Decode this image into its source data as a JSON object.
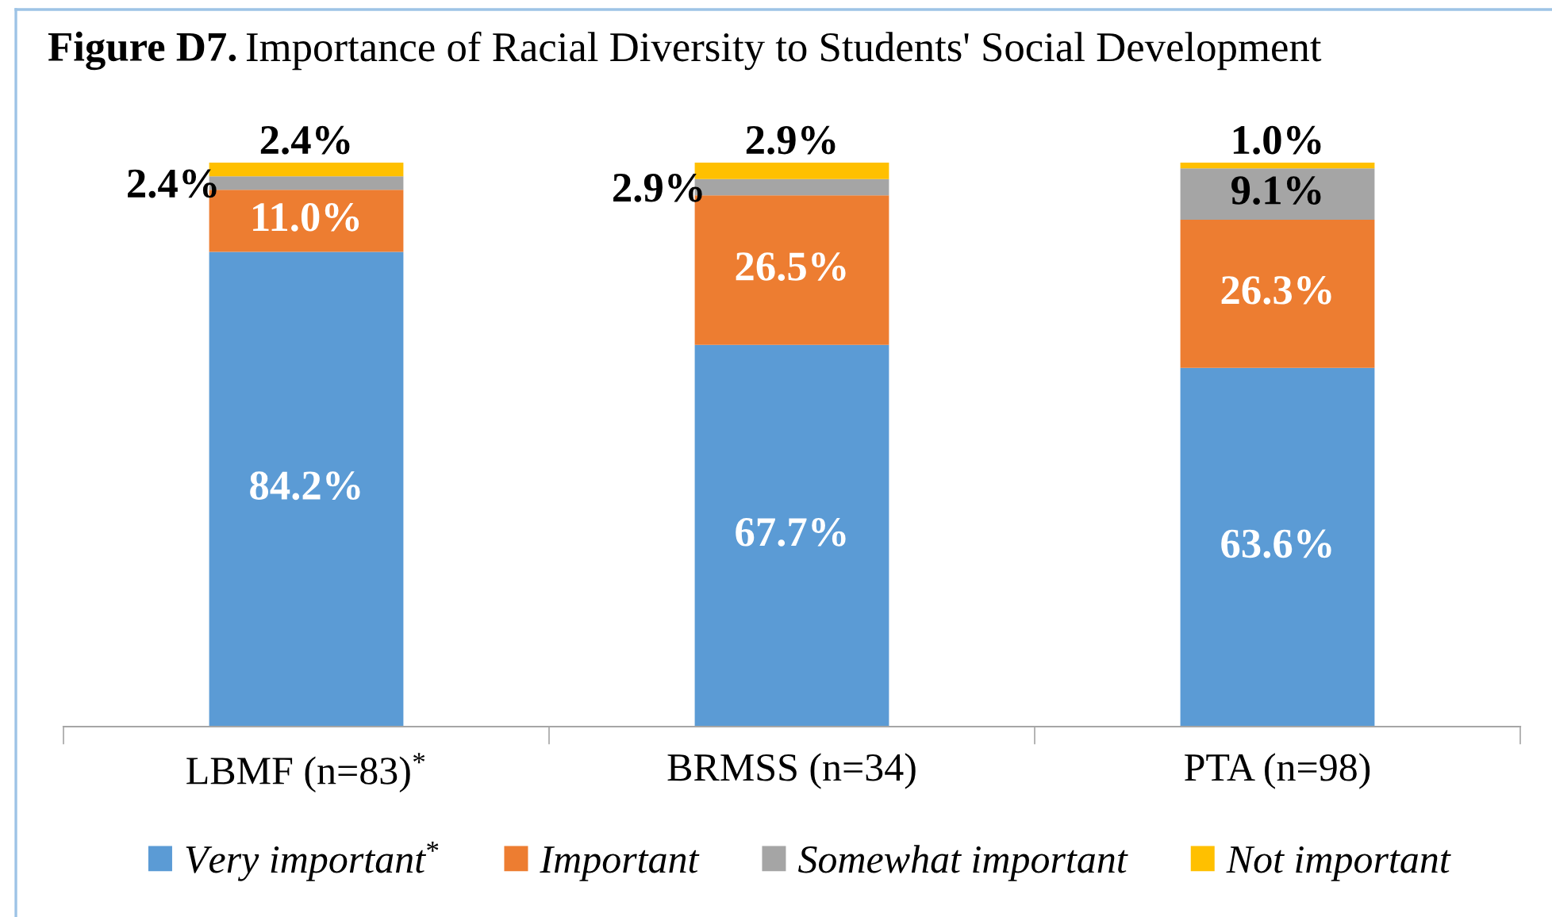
{
  "chart_data": {
    "type": "bar",
    "title": "Figure D7.",
    "subtitle": "Importance of Racial Diversity to Students' Social Development",
    "categories": [
      "LBMF (n=83)$^{*}$",
      "BRMSS (n=34)",
      "PTA (n=98)"
    ],
    "stacked": true,
    "series": [
      {
        "name": "Very important$^{*}$",
        "color": "#5b9bd5",
        "values": [
          84.2,
          67.7,
          63.6
        ],
        "value_labels": [
          "84.2%",
          "67.7%",
          "63.6%"
        ]
      },
      {
        "name": "Important",
        "color": "#ed7d31",
        "values": [
          11.0,
          26.5,
          26.3
        ],
        "value_labels": [
          "11.0%",
          "26.5%",
          "26.3%"
        ]
      },
      {
        "name": "Somewhat important",
        "color": "#a5a5a5",
        "values": [
          2.4,
          2.9,
          9.1
        ],
        "value_labels": [
          "2.4%",
          "2.9%",
          "9.1%"
        ]
      },
      {
        "name": "Not important",
        "color": "#ffc000",
        "values": [
          2.4,
          2.9,
          1.0
        ],
        "value_labels": [
          "2.4%",
          "2.9%",
          "1.0%"
        ]
      }
    ],
    "ylim": [
      0,
      101
    ],
    "tick_labels": "x",
    "legend": "bottom"
  }
}
